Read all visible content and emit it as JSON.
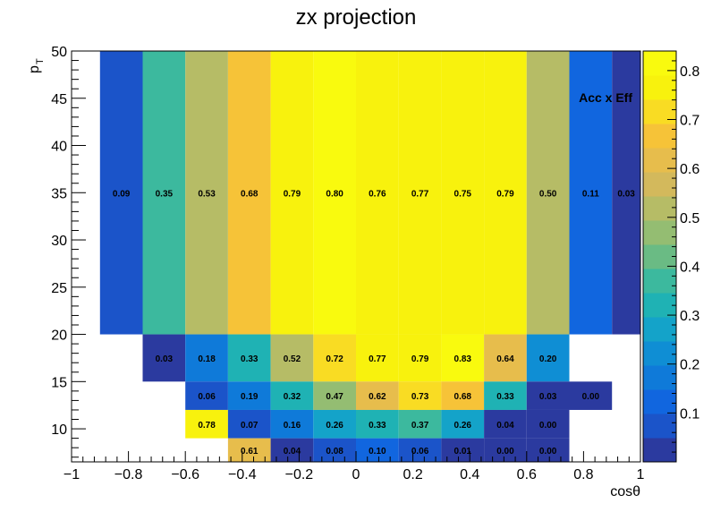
{
  "chart_data": {
    "type": "heatmap",
    "title": "zx projection",
    "xlabel": "cosθ",
    "ylabel_main": "p",
    "ylabel_sub": "T",
    "annotation": "Acc x Eff",
    "xlim": [
      -1,
      1
    ],
    "ylim": [
      6.5,
      50
    ],
    "zlim": [
      0,
      0.84
    ],
    "x_ticks": [
      -1,
      -0.8,
      -0.6,
      -0.4,
      -0.2,
      0,
      0.2,
      0.4,
      0.6,
      0.8,
      1
    ],
    "x_tick_labels": [
      "−1",
      "−0.8",
      "−0.6",
      "−0.4",
      "−0.2",
      "0",
      "0.2",
      "0.4",
      "0.6",
      "0.8",
      "1"
    ],
    "y_ticks": [
      10,
      15,
      20,
      25,
      30,
      35,
      40,
      45,
      50
    ],
    "y_tick_labels": [
      "10",
      "15",
      "20",
      "25",
      "30",
      "35",
      "40",
      "45",
      "50"
    ],
    "z_ticks": [
      0.1,
      0.2,
      0.3,
      0.4,
      0.5,
      0.6,
      0.7,
      0.8
    ],
    "z_tick_labels": [
      "0.1",
      "0.2",
      "0.3",
      "0.4",
      "0.5",
      "0.6",
      "0.7",
      "0.8"
    ],
    "x_edges": [
      -0.9,
      -0.75,
      -0.6,
      -0.45,
      -0.3,
      -0.15,
      0,
      0.15,
      0.3,
      0.45,
      0.6,
      0.75,
      0.9,
      1.0
    ],
    "rows": [
      {
        "y": [
          20,
          50
        ],
        "start_bin": 0,
        "values": [
          0.09,
          0.35,
          0.53,
          0.68,
          0.79,
          0.8,
          0.76,
          0.77,
          0.75,
          0.79,
          0.5,
          0.11,
          0.03
        ],
        "labels": [
          "0.09",
          "0.35",
          "0.53",
          "0.68",
          "0.79",
          "0.80",
          "0.76",
          "0.77",
          "0.75",
          "0.79",
          "0.50",
          "0.11",
          "0.03"
        ]
      },
      {
        "y": [
          15,
          20
        ],
        "start_bin": 1,
        "values": [
          0.03,
          0.18,
          0.33,
          0.52,
          0.72,
          0.77,
          0.79,
          0.83,
          0.64,
          0.2
        ],
        "labels": [
          "0.03",
          "0.18",
          "0.33",
          "0.52",
          "0.72",
          "0.77",
          "0.79",
          "0.83",
          "0.64",
          "0.20"
        ]
      },
      {
        "y": [
          12,
          15
        ],
        "start_bin": 2,
        "values": [
          0.06,
          0.19,
          0.32,
          0.47,
          0.62,
          0.73,
          0.68,
          0.33,
          0.03,
          0.0
        ],
        "labels": [
          "0.06",
          "0.19",
          "0.32",
          "0.47",
          "0.62",
          "0.73",
          "0.68",
          "0.33",
          "0.03",
          "0.00"
        ]
      },
      {
        "y": [
          9,
          12
        ],
        "start_bin": 2,
        "values": [
          0.78,
          0.07,
          0.16,
          0.26,
          0.33,
          0.37,
          0.26,
          0.04,
          0.0
        ],
        "labels": [
          "0.78",
          "0.07",
          "0.16",
          "0.26",
          "0.33",
          "0.37",
          "0.26",
          "0.04",
          "0.00"
        ]
      },
      {
        "y": [
          6.5,
          9
        ],
        "start_bin": 3,
        "values": [
          0.61,
          0.04,
          0.08,
          0.1,
          0.06,
          0.01,
          0.0,
          0.0
        ],
        "labels": [
          "0.61",
          "0.04",
          "0.08",
          "0.10",
          "0.06",
          "0.01",
          "0.00",
          "0.00"
        ]
      }
    ],
    "palette": [
      "#2b3a9f",
      "#1b54c9",
      "#1166df",
      "#0f7ad9",
      "#0f8ed4",
      "#14a3c9",
      "#1fb2b4",
      "#3cb99e",
      "#6abb84",
      "#94bd72",
      "#b6bc66",
      "#d3b95c",
      "#e7bd4c",
      "#f6c338",
      "#f9dc23",
      "#f8f20d",
      "#f9fa0e"
    ],
    "legend_position": "right"
  }
}
